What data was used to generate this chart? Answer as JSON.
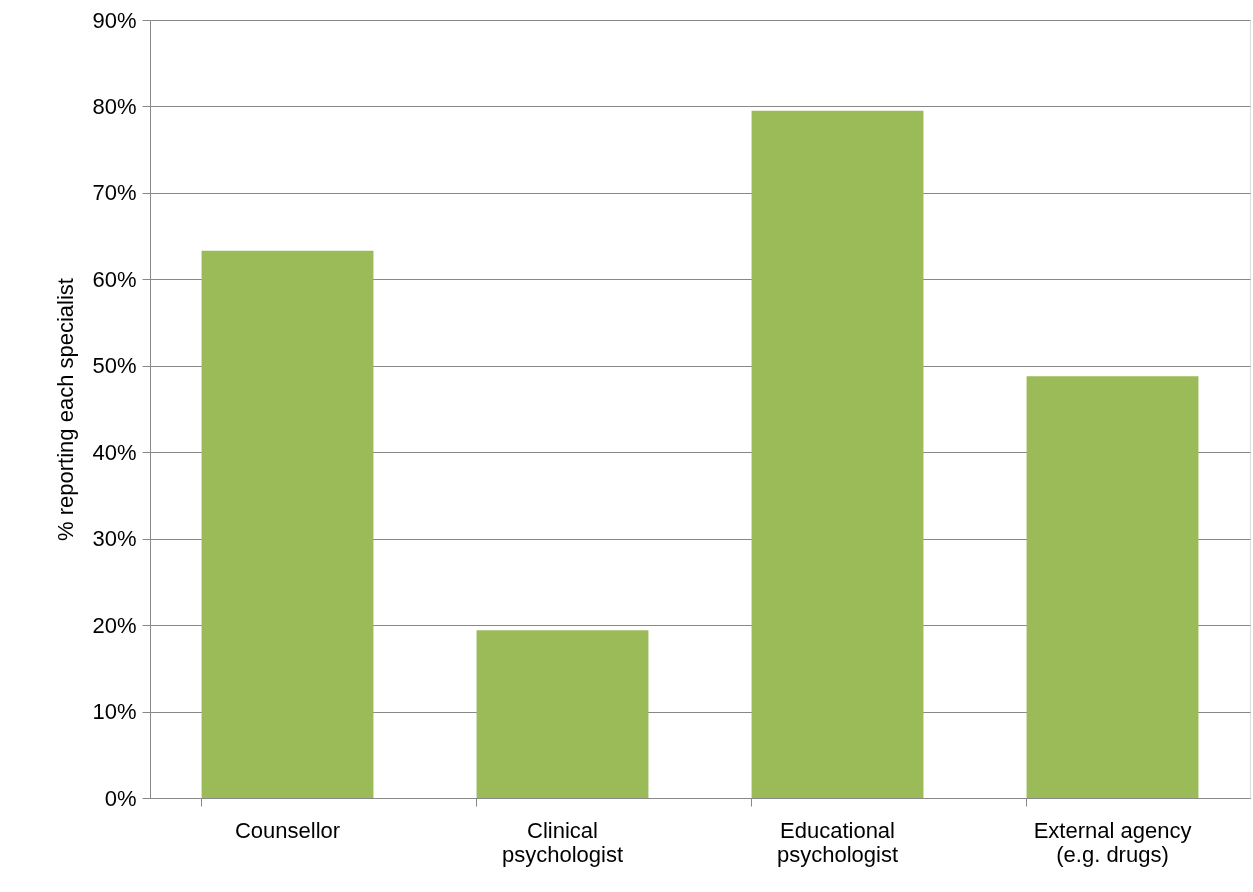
{
  "chart_data": {
    "type": "bar",
    "ylabel": "% reporting each specialist",
    "categories": [
      "Counsellor",
      "Clinical psychologist",
      "Educational psychologist",
      "External agency (e.g. drugs)"
    ],
    "values": [
      63.3,
      19.4,
      79.5,
      48.8
    ],
    "color": "#9bbb59",
    "ylim": [
      0,
      90
    ],
    "yticks": [
      {
        "value": 0,
        "label": "0%"
      },
      {
        "value": 10,
        "label": "10%"
      },
      {
        "value": 20,
        "label": "20%"
      },
      {
        "value": 30,
        "label": "30%"
      },
      {
        "value": 40,
        "label": "40%"
      },
      {
        "value": 50,
        "label": "50%"
      },
      {
        "value": 60,
        "label": "60%"
      },
      {
        "value": 70,
        "label": "70%"
      },
      {
        "value": 80,
        "label": "80%"
      },
      {
        "value": 90,
        "label": "90%"
      }
    ],
    "grid": "y"
  }
}
